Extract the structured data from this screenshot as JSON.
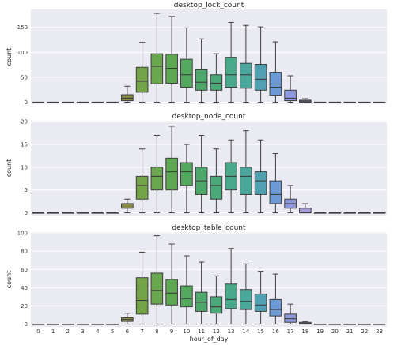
{
  "chart_data": [
    {
      "type": "box",
      "title": "desktop_lock_count",
      "ylabel": "count",
      "xlabel": "",
      "ylim": [
        -4,
        186
      ],
      "yticks": [
        0,
        50,
        100,
        150
      ],
      "grid": true,
      "categories": [
        "0",
        "1",
        "2",
        "3",
        "4",
        "5",
        "6",
        "7",
        "8",
        "9",
        "10",
        "11",
        "12",
        "13",
        "14",
        "15",
        "16",
        "17",
        "18",
        "19",
        "20",
        "21",
        "22",
        "23"
      ],
      "boxes": [
        {
          "x": "0",
          "min": 0,
          "q1": 0,
          "median": 0,
          "q3": 0,
          "max": 0
        },
        {
          "x": "1",
          "min": 0,
          "q1": 0,
          "median": 0,
          "q3": 0,
          "max": 0
        },
        {
          "x": "2",
          "min": 0,
          "q1": 0,
          "median": 0,
          "q3": 0,
          "max": 0
        },
        {
          "x": "3",
          "min": 0,
          "q1": 0,
          "median": 0,
          "q3": 0,
          "max": 0
        },
        {
          "x": "4",
          "min": 0,
          "q1": 0,
          "median": 0,
          "q3": 0,
          "max": 0
        },
        {
          "x": "5",
          "min": 0,
          "q1": 0,
          "median": 0,
          "q3": 0,
          "max": 0
        },
        {
          "x": "6",
          "min": 0,
          "q1": 3,
          "median": 8,
          "q3": 15,
          "max": 32
        },
        {
          "x": "7",
          "min": 0,
          "q1": 20,
          "median": 42,
          "q3": 70,
          "max": 120
        },
        {
          "x": "8",
          "min": 0,
          "q1": 37,
          "median": 72,
          "q3": 97,
          "max": 178
        },
        {
          "x": "9",
          "min": 0,
          "q1": 38,
          "median": 68,
          "q3": 96,
          "max": 172
        },
        {
          "x": "10",
          "min": 0,
          "q1": 30,
          "median": 55,
          "q3": 86,
          "max": 149
        },
        {
          "x": "11",
          "min": 0,
          "q1": 24,
          "median": 40,
          "q3": 65,
          "max": 127
        },
        {
          "x": "12",
          "min": 0,
          "q1": 24,
          "median": 38,
          "q3": 55,
          "max": 97
        },
        {
          "x": "13",
          "min": 0,
          "q1": 30,
          "median": 55,
          "q3": 90,
          "max": 160
        },
        {
          "x": "14",
          "min": 0,
          "q1": 28,
          "median": 55,
          "q3": 78,
          "max": 154
        },
        {
          "x": "15",
          "min": 0,
          "q1": 24,
          "median": 46,
          "q3": 76,
          "max": 151
        },
        {
          "x": "16",
          "min": 0,
          "q1": 14,
          "median": 30,
          "q3": 60,
          "max": 121
        },
        {
          "x": "17",
          "min": 0,
          "q1": 3,
          "median": 8,
          "q3": 24,
          "max": 53
        },
        {
          "x": "18",
          "min": 0,
          "q1": 0,
          "median": 2,
          "q3": 4,
          "max": 7
        },
        {
          "x": "19",
          "min": 0,
          "q1": 0,
          "median": 0,
          "q3": 0,
          "max": 0
        },
        {
          "x": "20",
          "min": 0,
          "q1": 0,
          "median": 0,
          "q3": 0,
          "max": 0
        },
        {
          "x": "21",
          "min": 0,
          "q1": 0,
          "median": 0,
          "q3": 0,
          "max": 0
        },
        {
          "x": "22",
          "min": 0,
          "q1": 0,
          "median": 0,
          "q3": 0,
          "max": 0
        },
        {
          "x": "23",
          "min": 0,
          "q1": 0,
          "median": 0,
          "q3": 0,
          "max": 0
        }
      ]
    },
    {
      "type": "box",
      "title": "desktop_node_count",
      "ylabel": "count",
      "xlabel": "",
      "ylim": [
        -0.6,
        20.2
      ],
      "yticks": [
        0,
        5,
        10,
        15,
        20
      ],
      "grid": true,
      "categories": [
        "0",
        "1",
        "2",
        "3",
        "4",
        "5",
        "6",
        "7",
        "8",
        "9",
        "10",
        "11",
        "12",
        "13",
        "14",
        "15",
        "16",
        "17",
        "18",
        "19",
        "20",
        "21",
        "22",
        "23"
      ],
      "boxes": [
        {
          "x": "0",
          "min": 0,
          "q1": 0,
          "median": 0,
          "q3": 0,
          "max": 0
        },
        {
          "x": "1",
          "min": 0,
          "q1": 0,
          "median": 0,
          "q3": 0,
          "max": 0
        },
        {
          "x": "2",
          "min": 0,
          "q1": 0,
          "median": 0,
          "q3": 0,
          "max": 0
        },
        {
          "x": "3",
          "min": 0,
          "q1": 0,
          "median": 0,
          "q3": 0,
          "max": 0
        },
        {
          "x": "4",
          "min": 0,
          "q1": 0,
          "median": 0,
          "q3": 0,
          "max": 0
        },
        {
          "x": "5",
          "min": 0,
          "q1": 0,
          "median": 0,
          "q3": 0,
          "max": 0
        },
        {
          "x": "6",
          "min": 0,
          "q1": 1,
          "median": 2,
          "q3": 2,
          "max": 3
        },
        {
          "x": "7",
          "min": 0,
          "q1": 3,
          "median": 6,
          "q3": 8,
          "max": 14
        },
        {
          "x": "8",
          "min": 0,
          "q1": 5,
          "median": 8,
          "q3": 10,
          "max": 17
        },
        {
          "x": "9",
          "min": 0,
          "q1": 5,
          "median": 9,
          "q3": 12,
          "max": 19
        },
        {
          "x": "10",
          "min": 0,
          "q1": 6,
          "median": 9,
          "q3": 11,
          "max": 15
        },
        {
          "x": "11",
          "min": 0,
          "q1": 4,
          "median": 7,
          "q3": 10,
          "max": 17
        },
        {
          "x": "12",
          "min": 0,
          "q1": 3,
          "median": 6,
          "q3": 8,
          "max": 14
        },
        {
          "x": "13",
          "min": 0,
          "q1": 5,
          "median": 8,
          "q3": 11,
          "max": 16
        },
        {
          "x": "14",
          "min": 0,
          "q1": 4,
          "median": 8,
          "q3": 10,
          "max": 18
        },
        {
          "x": "15",
          "min": 0,
          "q1": 4,
          "median": 7,
          "q3": 9,
          "max": 16
        },
        {
          "x": "16",
          "min": 0,
          "q1": 2,
          "median": 4,
          "q3": 7,
          "max": 13
        },
        {
          "x": "17",
          "min": 0,
          "q1": 1,
          "median": 2,
          "q3": 3,
          "max": 6
        },
        {
          "x": "18",
          "min": 0,
          "q1": 0,
          "median": 0,
          "q3": 1,
          "max": 2
        },
        {
          "x": "19",
          "min": 0,
          "q1": 0,
          "median": 0,
          "q3": 0,
          "max": 0
        },
        {
          "x": "20",
          "min": 0,
          "q1": 0,
          "median": 0,
          "q3": 0,
          "max": 0
        },
        {
          "x": "21",
          "min": 0,
          "q1": 0,
          "median": 0,
          "q3": 0,
          "max": 0
        },
        {
          "x": "22",
          "min": 0,
          "q1": 0,
          "median": 0,
          "q3": 0,
          "max": 0
        },
        {
          "x": "23",
          "min": 0,
          "q1": 0,
          "median": 0,
          "q3": 0,
          "max": 0
        }
      ]
    },
    {
      "type": "box",
      "title": "desktop_table_count",
      "ylabel": "count",
      "xlabel": "hour_of_day",
      "ylim": [
        -3,
        101
      ],
      "yticks": [
        0,
        20,
        40,
        60,
        80,
        100
      ],
      "grid": true,
      "categories": [
        "0",
        "1",
        "2",
        "3",
        "4",
        "5",
        "6",
        "7",
        "8",
        "9",
        "10",
        "11",
        "12",
        "13",
        "14",
        "15",
        "16",
        "17",
        "18",
        "19",
        "20",
        "21",
        "22",
        "23"
      ],
      "boxes": [
        {
          "x": "0",
          "min": 0,
          "q1": 0,
          "median": 0,
          "q3": 0,
          "max": 0
        },
        {
          "x": "1",
          "min": 0,
          "q1": 0,
          "median": 0,
          "q3": 0,
          "max": 0
        },
        {
          "x": "2",
          "min": 0,
          "q1": 0,
          "median": 0,
          "q3": 0,
          "max": 0
        },
        {
          "x": "3",
          "min": 0,
          "q1": 0,
          "median": 0,
          "q3": 0,
          "max": 0
        },
        {
          "x": "4",
          "min": 0,
          "q1": 0,
          "median": 0,
          "q3": 0,
          "max": 0
        },
        {
          "x": "5",
          "min": 0,
          "q1": 0,
          "median": 0,
          "q3": 0,
          "max": 0
        },
        {
          "x": "6",
          "min": 0,
          "q1": 3,
          "median": 5,
          "q3": 7,
          "max": 12
        },
        {
          "x": "7",
          "min": 0,
          "q1": 11,
          "median": 26,
          "q3": 51,
          "max": 79
        },
        {
          "x": "8",
          "min": 0,
          "q1": 22,
          "median": 37,
          "q3": 56,
          "max": 97
        },
        {
          "x": "9",
          "min": 0,
          "q1": 21,
          "median": 34,
          "q3": 49,
          "max": 88
        },
        {
          "x": "10",
          "min": 0,
          "q1": 19,
          "median": 28,
          "q3": 42,
          "max": 75
        },
        {
          "x": "11",
          "min": 0,
          "q1": 14,
          "median": 24,
          "q3": 35,
          "max": 68
        },
        {
          "x": "12",
          "min": 0,
          "q1": 12,
          "median": 19,
          "q3": 30,
          "max": 53
        },
        {
          "x": "13",
          "min": 0,
          "q1": 17,
          "median": 27,
          "q3": 44,
          "max": 83
        },
        {
          "x": "14",
          "min": 0,
          "q1": 16,
          "median": 25,
          "q3": 38,
          "max": 66
        },
        {
          "x": "15",
          "min": 0,
          "q1": 14,
          "median": 21,
          "q3": 33,
          "max": 58
        },
        {
          "x": "16",
          "min": 0,
          "q1": 9,
          "median": 16,
          "q3": 27,
          "max": 55
        },
        {
          "x": "17",
          "min": 0,
          "q1": 2,
          "median": 6,
          "q3": 11,
          "max": 22
        },
        {
          "x": "18",
          "min": 0,
          "q1": 0,
          "median": 1,
          "q3": 2,
          "max": 3
        },
        {
          "x": "19",
          "min": 0,
          "q1": 0,
          "median": 0,
          "q3": 0,
          "max": 0
        },
        {
          "x": "20",
          "min": 0,
          "q1": 0,
          "median": 0,
          "q3": 0,
          "max": 0
        },
        {
          "x": "21",
          "min": 0,
          "q1": 0,
          "median": 0,
          "q3": 0,
          "max": 0
        },
        {
          "x": "22",
          "min": 0,
          "q1": 0,
          "median": 0,
          "q3": 0,
          "max": 0
        },
        {
          "x": "23",
          "min": 0,
          "q1": 0,
          "median": 0,
          "q3": 0,
          "max": 0
        }
      ]
    }
  ],
  "colors": {
    "panel_bg": "#eaeaf2",
    "grid": "#ffffff",
    "box_edge": "#3d3d3d",
    "hour_fill": [
      "#d3e1b8",
      "#d5ddb5",
      "#d2d4b1",
      "#d0caaa",
      "#cfc1a3",
      "#ceba9b",
      "#8a8d47",
      "#74a347",
      "#6aa84f",
      "#5ea854",
      "#55a95f",
      "#4fa86b",
      "#4aa879",
      "#48a889",
      "#49a79b",
      "#4fa1b1",
      "#6b9ad4",
      "#8e98dc",
      "#a59bd6",
      "#b8b8e2",
      "#c2c6e6",
      "#c9d4ea",
      "#cfdcea",
      "#d4e2ea"
    ]
  }
}
